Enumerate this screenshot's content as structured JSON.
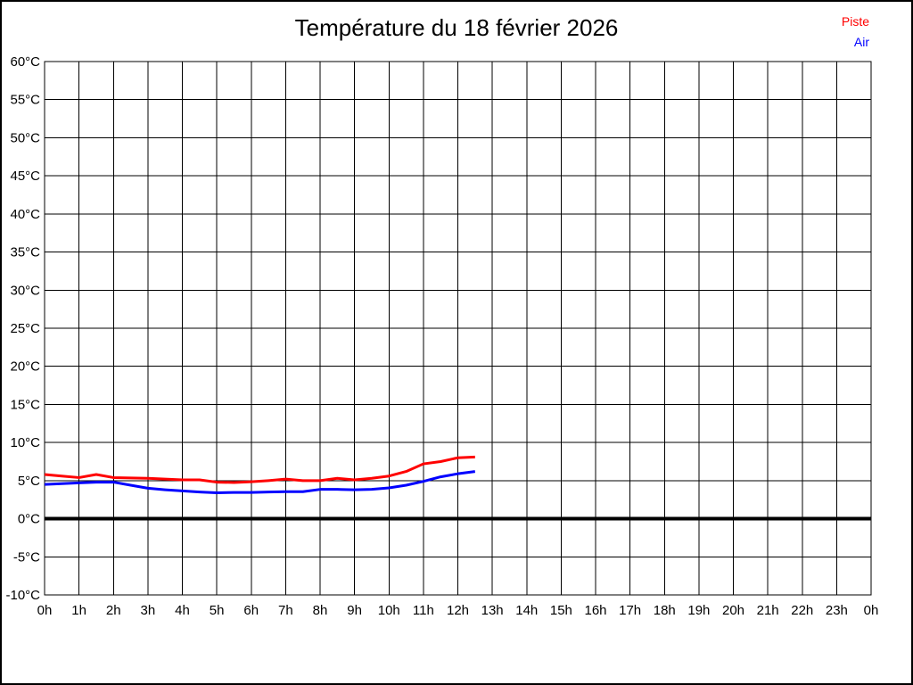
{
  "title": "Température du 18 février 2026",
  "legend": [
    {
      "label": "Piste",
      "color": "#ff0000"
    },
    {
      "label": "Air",
      "color": "#0000ff"
    }
  ],
  "chart_data": {
    "type": "line",
    "title": "Température du 18 février 2026",
    "xlabel": "",
    "ylabel": "",
    "xlim": [
      0,
      24
    ],
    "ylim": [
      -10,
      60
    ],
    "grid": true,
    "legend_position": "top-right",
    "grid_color": "#000000",
    "zero_line": {
      "value": 0,
      "color": "#000000",
      "width": 4
    },
    "x_ticks": {
      "hours": [
        0,
        1,
        2,
        3,
        4,
        5,
        6,
        7,
        8,
        9,
        10,
        11,
        12,
        13,
        14,
        15,
        16,
        17,
        18,
        19,
        20,
        21,
        22,
        23,
        24
      ],
      "labels": [
        "0h",
        "1h",
        "2h",
        "3h",
        "4h",
        "5h",
        "6h",
        "7h",
        "8h",
        "9h",
        "10h",
        "11h",
        "12h",
        "13h",
        "14h",
        "15h",
        "16h",
        "17h",
        "18h",
        "19h",
        "20h",
        "21h",
        "22h",
        "23h",
        "0h"
      ]
    },
    "y_ticks": {
      "values": [
        60,
        55,
        50,
        45,
        40,
        35,
        30,
        25,
        20,
        15,
        10,
        5,
        0,
        -5,
        -10
      ],
      "labels": [
        "60°C",
        "55°C",
        "50°C",
        "45°C",
        "40°C",
        "35°C",
        "30°C",
        "25°C",
        "20°C",
        "15°C",
        "10°C",
        "5°C",
        "0°C",
        "-5°C",
        "-10°C"
      ]
    },
    "x": [
      0,
      0.5,
      1,
      1.5,
      2,
      2.5,
      3,
      3.5,
      4,
      4.5,
      5,
      5.5,
      6,
      6.5,
      7,
      7.5,
      8,
      8.5,
      9,
      9.5,
      10,
      10.5,
      11,
      11.5,
      12,
      12.5
    ],
    "series": [
      {
        "name": "Piste",
        "color": "#ff0000",
        "values": [
          5.8,
          5.6,
          5.4,
          5.8,
          5.4,
          5.35,
          5.3,
          5.2,
          5.1,
          5.1,
          4.8,
          4.75,
          4.85,
          5.0,
          5.2,
          5.0,
          5.0,
          5.3,
          5.1,
          5.3,
          5.6,
          6.2,
          7.2,
          7.5,
          8.0,
          8.1
        ]
      },
      {
        "name": "Air",
        "color": "#0000ff",
        "values": [
          4.5,
          4.6,
          4.7,
          4.8,
          4.8,
          4.4,
          4.0,
          3.8,
          3.65,
          3.5,
          3.4,
          3.45,
          3.45,
          3.5,
          3.55,
          3.55,
          3.85,
          3.85,
          3.8,
          3.85,
          4.05,
          4.4,
          4.9,
          5.5,
          5.9,
          6.2
        ]
      }
    ]
  }
}
